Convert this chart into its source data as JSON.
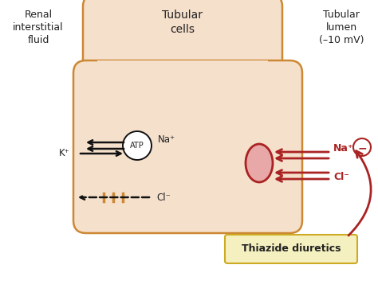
{
  "bg_color": "#ffffff",
  "cell_fill": "#f5e0cc",
  "cell_edge": "#cc8833",
  "arrow_black": "#111111",
  "arrow_red": "#aa2222",
  "atp_fill": "#ffffff",
  "atp_edge": "#111111",
  "cotrans_fill": "#e8a8a8",
  "cotrans_edge": "#aa2222",
  "thiazide_fill": "#f5f0c0",
  "thiazide_edge": "#ccaa22",
  "inhib_fill": "#ffffff",
  "inhib_edge": "#aa2222",
  "text_dark": "#222222",
  "text_red": "#aa2222",
  "label_left": "Renal\ninterstitial\nfluid",
  "label_center": "Tubular\ncells",
  "label_right": "Tubular\nlumen\n(–10 mV)",
  "label_atp": "ATP",
  "label_na_pump": "Na⁺",
  "label_k": "K⁺",
  "label_cl_left": "Cl⁻",
  "label_na_right": "Na⁺",
  "label_cl_right": "Cl⁻",
  "label_thiazide": "Thiazide diuretics",
  "label_minus": "−"
}
